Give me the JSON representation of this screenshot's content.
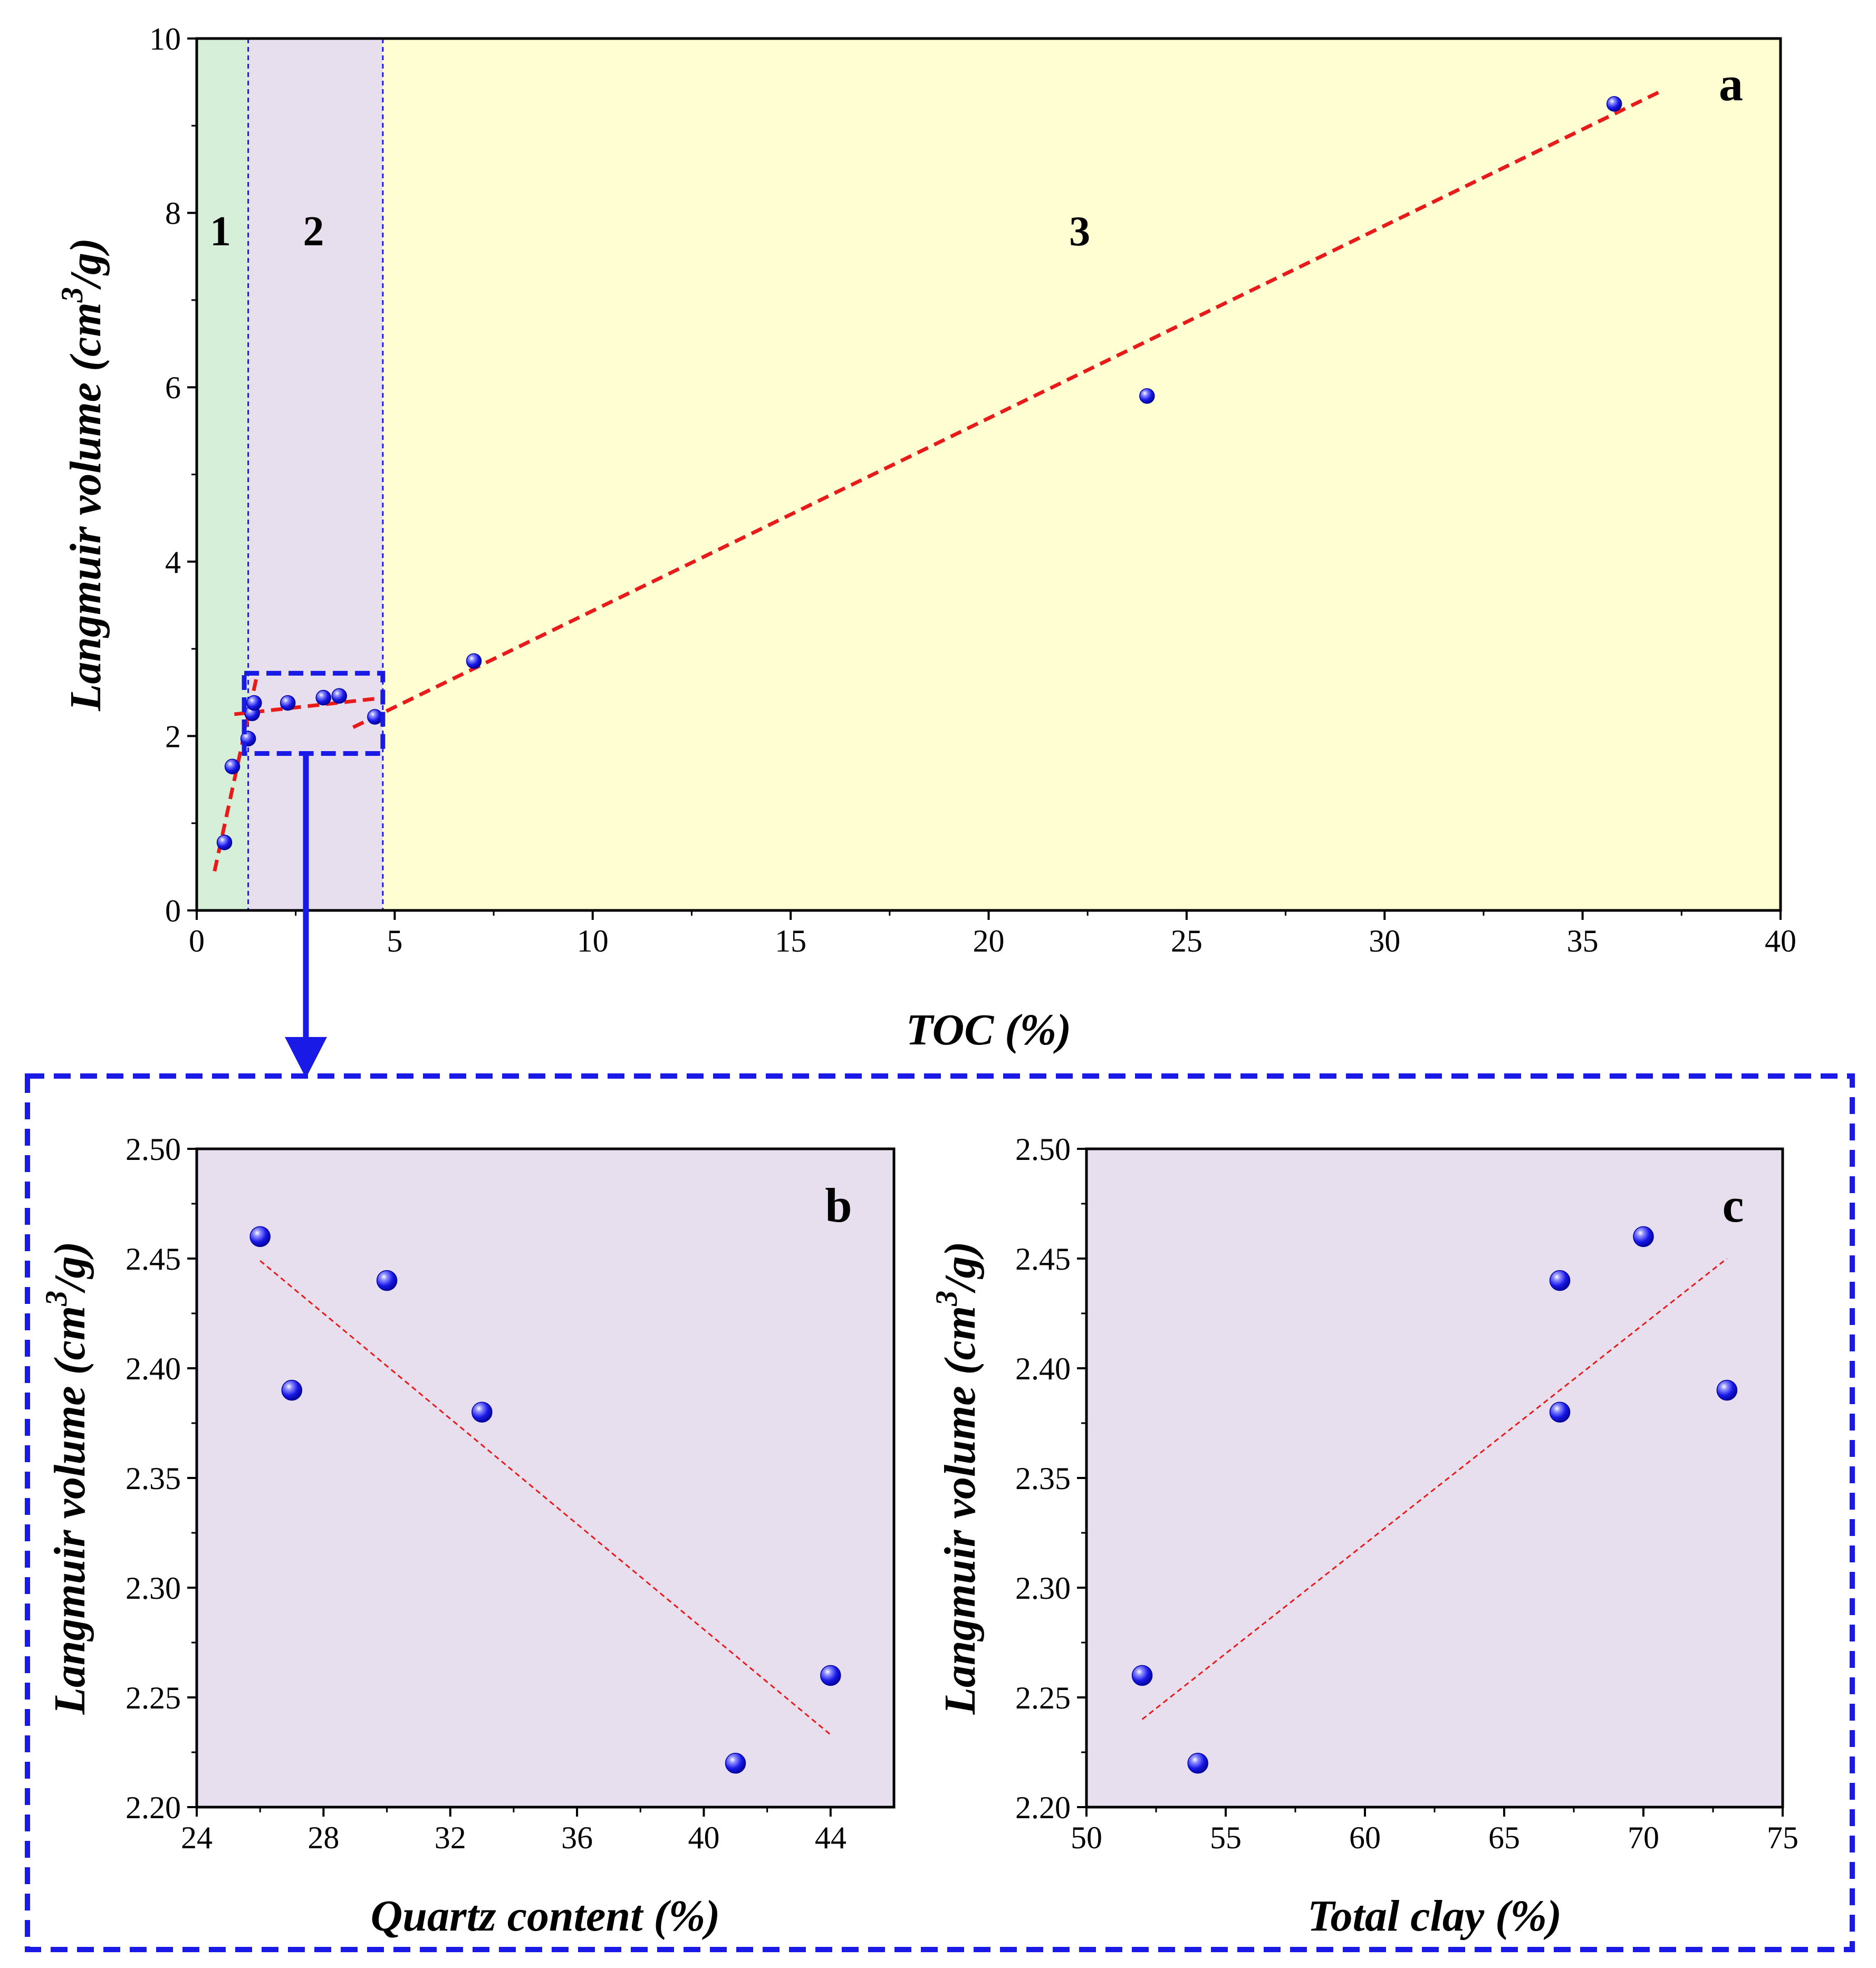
{
  "colors": {
    "point": "#1414e6",
    "trend": "#e81b1b",
    "highlight": "#1a1ae6",
    "region1": "#d6efd9",
    "region2": "#e7dfee",
    "region3": "#fefed2",
    "panel_bg": "#e7dfee"
  },
  "chart_data": [
    {
      "id": "a",
      "type": "scatter",
      "panel_label": "a",
      "xlabel": "TOC (%)",
      "ylabel_main": "Langmuir volume (cm",
      "ylabel_sup": "3",
      "ylabel_tail": "/g)",
      "xlim": [
        0,
        40
      ],
      "ylim": [
        0,
        10
      ],
      "xticks": [
        0,
        5,
        10,
        15,
        20,
        25,
        30,
        35,
        40
      ],
      "yticks": [
        0,
        2,
        4,
        6,
        8,
        10
      ],
      "regions": [
        {
          "label": "1",
          "x0": 0,
          "x1": 1.3
        },
        {
          "label": "2",
          "x0": 1.3,
          "x1": 4.7
        },
        {
          "label": "3",
          "x0": 4.7,
          "x1": 40
        }
      ],
      "points": [
        {
          "x": 0.7,
          "y": 0.78
        },
        {
          "x": 0.9,
          "y": 1.65
        },
        {
          "x": 1.3,
          "y": 1.97
        },
        {
          "x": 1.4,
          "y": 2.26
        },
        {
          "x": 1.45,
          "y": 2.38
        },
        {
          "x": 2.3,
          "y": 2.38
        },
        {
          "x": 3.2,
          "y": 2.44
        },
        {
          "x": 3.6,
          "y": 2.46
        },
        {
          "x": 4.5,
          "y": 2.22
        },
        {
          "x": 7.0,
          "y": 2.86
        },
        {
          "x": 24.0,
          "y": 5.9
        },
        {
          "x": 35.8,
          "y": 9.25
        }
      ],
      "trendlines": [
        {
          "x": [
            0.45,
            1.5
          ],
          "y": [
            0.45,
            2.65
          ]
        },
        {
          "x": [
            0.95,
            4.75
          ],
          "y": [
            2.25,
            2.44
          ]
        },
        {
          "x": [
            3.95,
            37.0
          ],
          "y": [
            2.1,
            9.4
          ]
        }
      ],
      "highlight_box": {
        "x": [
          1.2,
          4.7
        ],
        "y": [
          1.8,
          2.72
        ]
      }
    },
    {
      "id": "b",
      "type": "scatter",
      "panel_label": "b",
      "xlabel": "Quartz content (%)",
      "ylabel_main": "Langmuir volume (cm",
      "ylabel_sup": "3",
      "ylabel_tail": "/g)",
      "xlim": [
        24,
        46
      ],
      "ylim": [
        2.2,
        2.5
      ],
      "xticks": [
        24,
        28,
        32,
        36,
        40,
        44
      ],
      "yticks": [
        2.2,
        2.25,
        2.3,
        2.35,
        2.4,
        2.45,
        2.5
      ],
      "ytick_labels": [
        "2.20",
        "2.25",
        "2.30",
        "2.35",
        "2.40",
        "2.45",
        "2.50"
      ],
      "points": [
        {
          "x": 26,
          "y": 2.46
        },
        {
          "x": 27,
          "y": 2.39
        },
        {
          "x": 30,
          "y": 2.44
        },
        {
          "x": 33,
          "y": 2.38
        },
        {
          "x": 41,
          "y": 2.22
        },
        {
          "x": 44,
          "y": 2.26
        }
      ],
      "trendlines": [
        {
          "x": [
            26,
            44
          ],
          "y": [
            2.449,
            2.233
          ]
        }
      ]
    },
    {
      "id": "c",
      "type": "scatter",
      "panel_label": "c",
      "xlabel": "Total clay (%)",
      "ylabel_main": "Langmuir volume (cm",
      "ylabel_sup": "3",
      "ylabel_tail": "/g)",
      "xlim": [
        50,
        75
      ],
      "ylim": [
        2.2,
        2.5
      ],
      "xticks": [
        50,
        55,
        60,
        65,
        70,
        75
      ],
      "yticks": [
        2.2,
        2.25,
        2.3,
        2.35,
        2.4,
        2.45,
        2.5
      ],
      "ytick_labels": [
        "2.20",
        "2.25",
        "2.30",
        "2.35",
        "2.40",
        "2.45",
        "2.50"
      ],
      "points": [
        {
          "x": 52,
          "y": 2.26
        },
        {
          "x": 54,
          "y": 2.22
        },
        {
          "x": 67,
          "y": 2.44
        },
        {
          "x": 67,
          "y": 2.38
        },
        {
          "x": 70,
          "y": 2.46
        },
        {
          "x": 73,
          "y": 2.39
        }
      ],
      "trendlines": [
        {
          "x": [
            52,
            73
          ],
          "y": [
            2.24,
            2.45
          ]
        }
      ]
    }
  ]
}
